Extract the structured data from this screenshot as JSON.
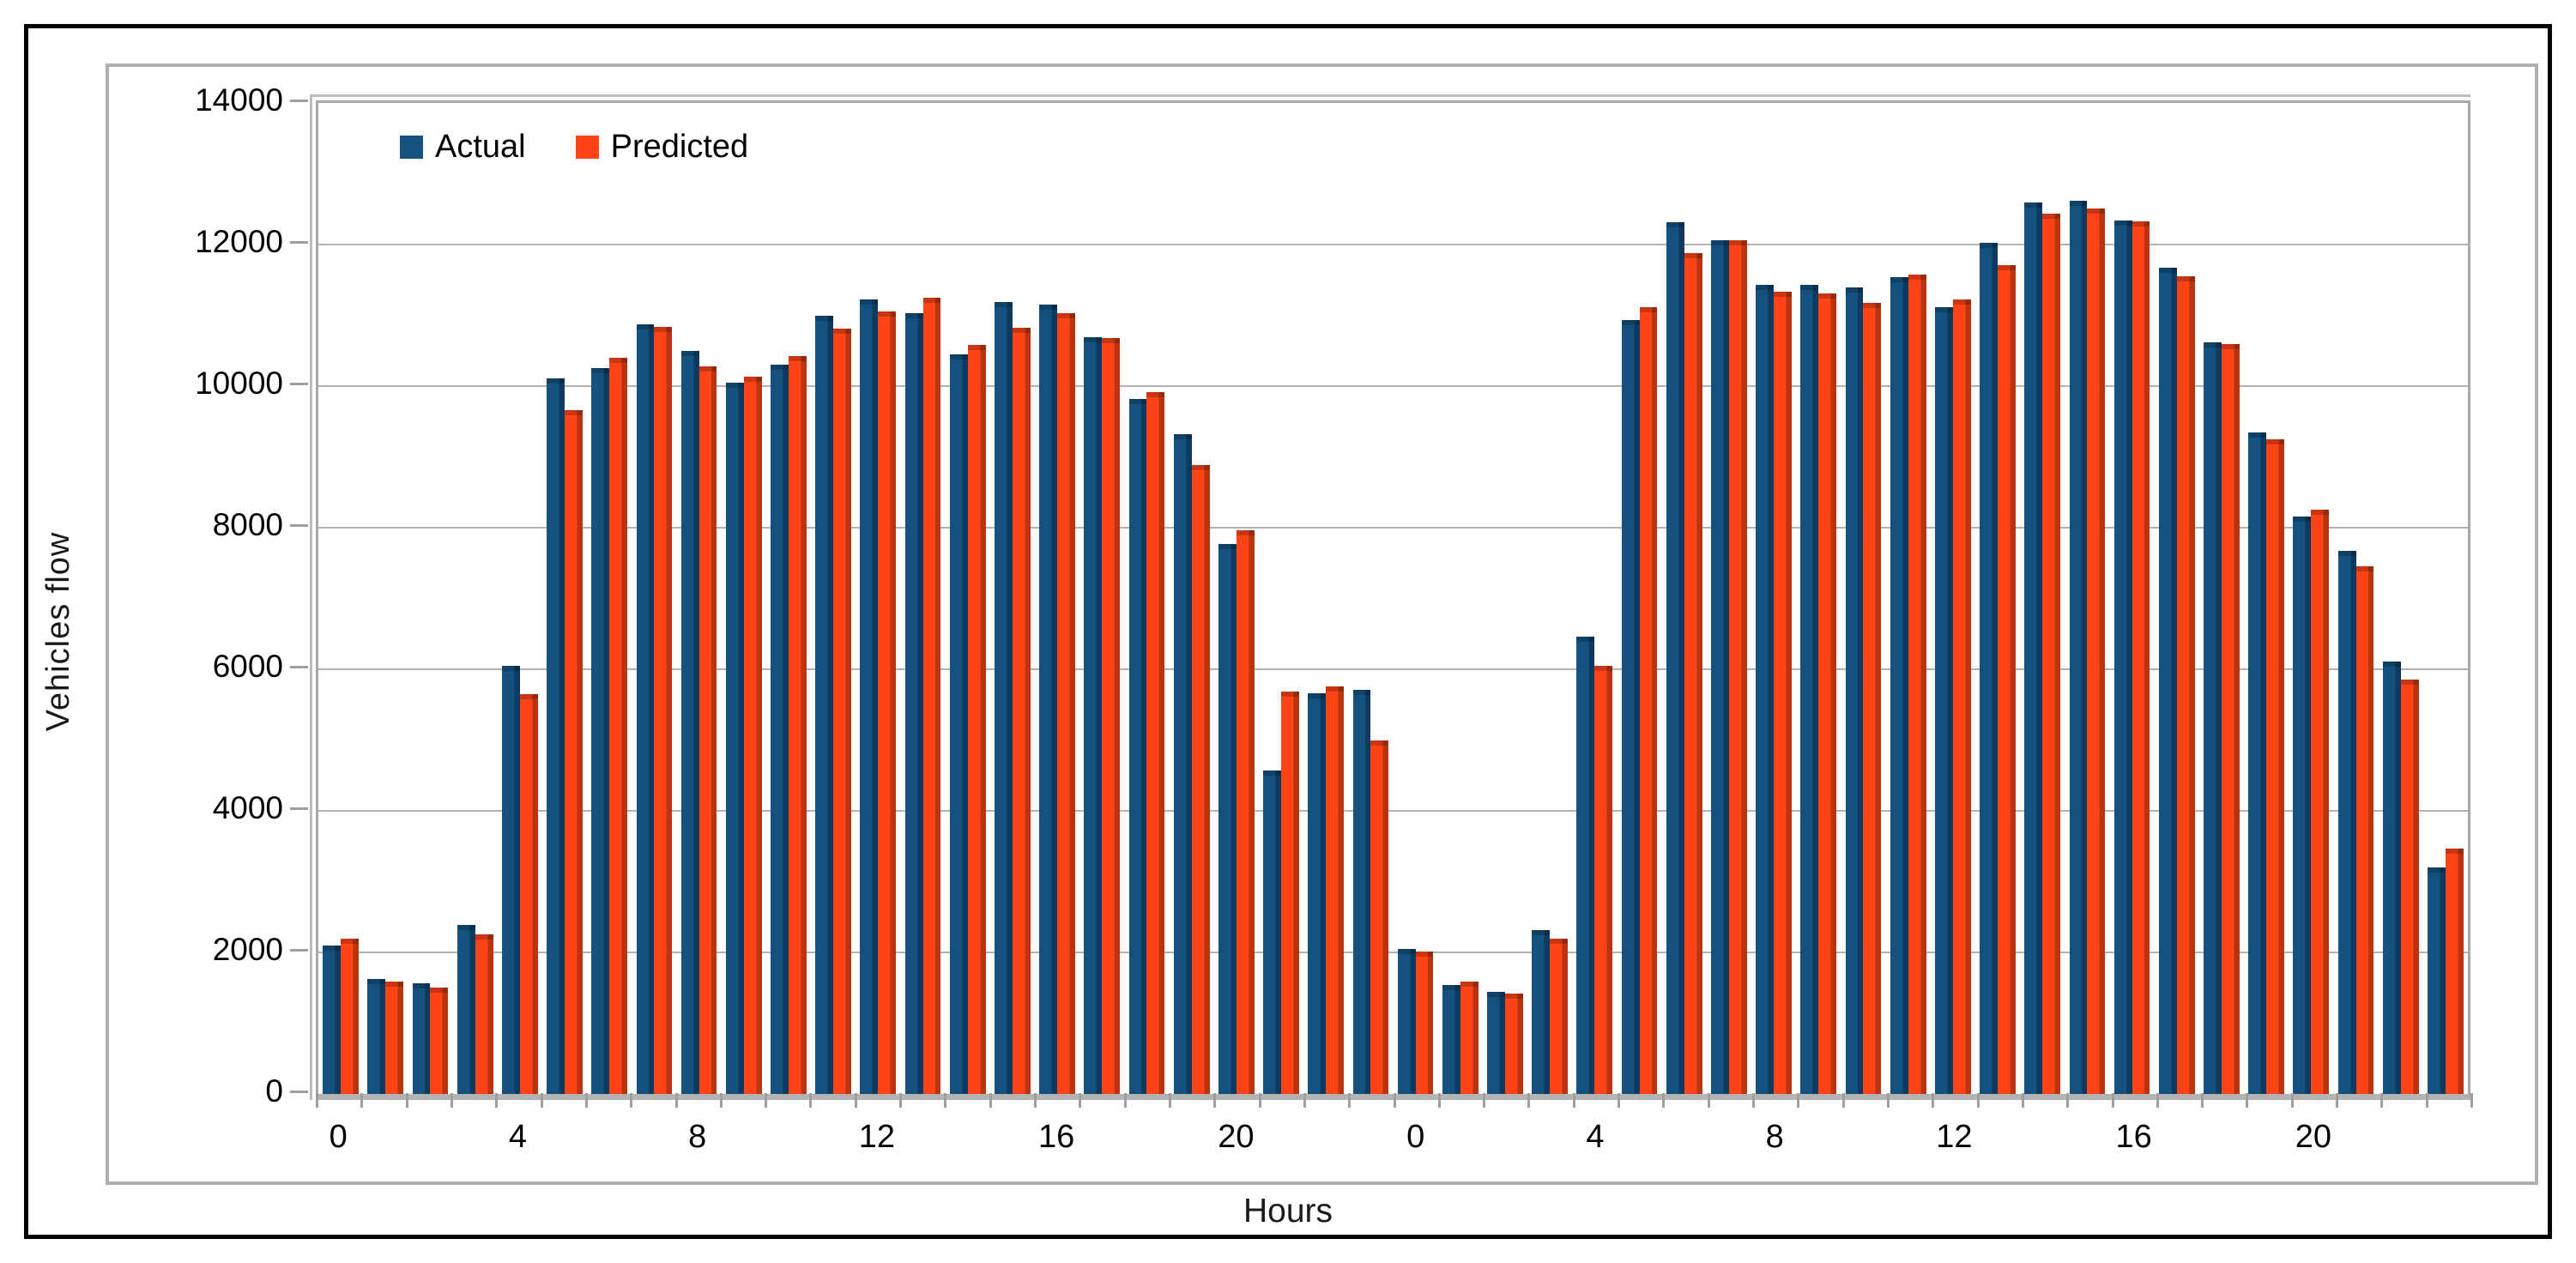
{
  "chart_data": {
    "type": "bar",
    "title": "",
    "xlabel": "Hours",
    "ylabel": "Vehicles flow",
    "ylim": [
      0,
      14000
    ],
    "y_tick_step": 2000,
    "y_ticks": [
      0,
      2000,
      4000,
      6000,
      8000,
      10000,
      12000,
      14000
    ],
    "grid": true,
    "legend_position": "top-left-inside",
    "x_major_labels": [
      "0",
      "4",
      "8",
      "12",
      "16",
      "20",
      "0",
      "4",
      "8",
      "12",
      "16",
      "20"
    ],
    "x_major_slots": [
      0,
      4,
      8,
      12,
      16,
      20,
      24,
      28,
      32,
      36,
      40,
      44
    ],
    "categories": [
      "0",
      "1",
      "2",
      "3",
      "4",
      "5",
      "6",
      "7",
      "8",
      "9",
      "10",
      "11",
      "12",
      "13",
      "14",
      "15",
      "16",
      "17",
      "18",
      "19",
      "20",
      "21",
      "22",
      "23",
      "0",
      "1",
      "2",
      "3",
      "4",
      "5",
      "6",
      "7",
      "8",
      "9",
      "10",
      "11",
      "12",
      "13",
      "14",
      "15",
      "16",
      "17",
      "18",
      "19",
      "20",
      "21",
      "22",
      "23"
    ],
    "series": [
      {
        "name": "Actual",
        "color": "#14517f",
        "shade_color": "#0d3a5e",
        "values": [
          2100,
          1620,
          1560,
          2390,
          6050,
          10110,
          10250,
          10870,
          10500,
          10050,
          10300,
          11000,
          11230,
          11030,
          10450,
          11190,
          11150,
          10690,
          9820,
          9320,
          7770,
          4570,
          5660,
          5710,
          2050,
          1540,
          1440,
          2310,
          6460,
          10930,
          12310,
          12060,
          11430,
          11430,
          11400,
          11540,
          11120,
          12020,
          12590,
          12620,
          12340,
          11670,
          10620,
          9350,
          8160,
          7670,
          6110,
          3200
        ]
      },
      {
        "name": "Predicted",
        "color": "#fc4417",
        "shade_color": "#bb3410",
        "values": [
          2200,
          1590,
          1500,
          2260,
          5650,
          9660,
          10400,
          10840,
          10280,
          10130,
          10420,
          10810,
          11060,
          11250,
          10580,
          10820,
          11030,
          10680,
          9920,
          8880,
          7960,
          5680,
          5760,
          4990,
          2010,
          1590,
          1420,
          2200,
          6050,
          11110,
          11880,
          12060,
          11330,
          11310,
          11170,
          11570,
          11230,
          11710,
          12440,
          12510,
          12330,
          11550,
          10600,
          9250,
          8250,
          7460,
          5860,
          3470
        ]
      }
    ],
    "colors": {
      "gridline": "#b2b2b2",
      "plot_border": "#a8a8a8",
      "chart_border": "#b0b0b0",
      "outer_border": "#000000",
      "text": "#000000"
    }
  }
}
